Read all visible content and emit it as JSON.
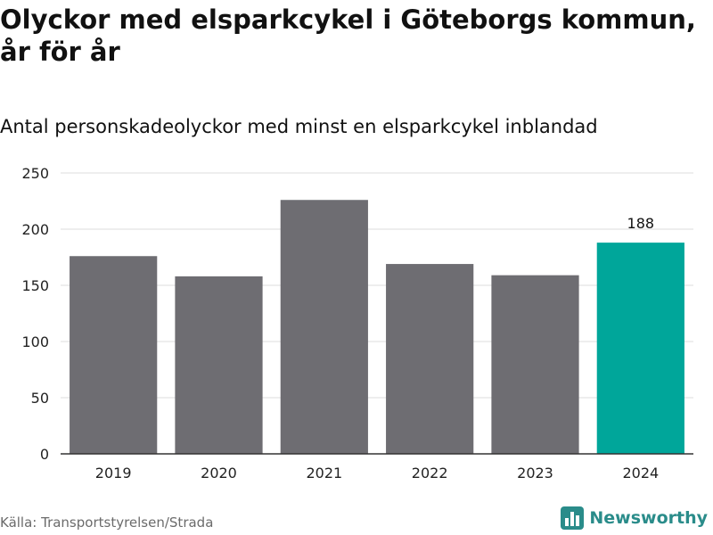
{
  "header": {
    "title": "Olyckor med elsparkcykel i Göteborgs kommun, år för år",
    "subtitle": "Antal personskadeolyckor med minst en elsparkcykel inblandad"
  },
  "footer": {
    "source": "Källa: Transportstyrelsen/Strada",
    "brand": "Newsworthy",
    "brand_icon": "bar-chart-logo-icon"
  },
  "colors": {
    "bar": "#6e6d72",
    "highlight": "#00a69a",
    "grid": "#dddddd",
    "axis": "#333333",
    "brand": "#2a8c8a"
  },
  "chart_data": {
    "type": "bar",
    "title": "Olyckor med elsparkcykel i Göteborgs kommun, år för år",
    "subtitle": "Antal personskadeolyckor med minst en elsparkcykel inblandad",
    "xlabel": "",
    "ylabel": "",
    "categories": [
      "2019",
      "2020",
      "2021",
      "2022",
      "2023",
      "2024"
    ],
    "values": [
      176,
      158,
      226,
      169,
      159,
      188
    ],
    "highlight_index": 5,
    "data_labels": [
      {
        "index": 5,
        "text": "188"
      }
    ],
    "ylim": [
      0,
      250
    ],
    "yticks": [
      0,
      50,
      100,
      150,
      200,
      250
    ],
    "grid": true,
    "legend": "none"
  }
}
